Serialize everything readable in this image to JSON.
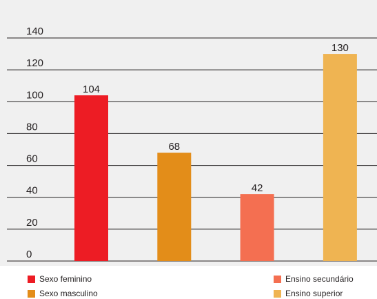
{
  "chart_data": {
    "type": "bar",
    "title": "",
    "xlabel": "",
    "ylabel": "",
    "ylim": [
      0,
      140
    ],
    "yticks": [
      0,
      20,
      40,
      60,
      80,
      100,
      120,
      140
    ],
    "grid": true,
    "legend_position": "bottom",
    "categories": [
      "Sexo feminino",
      "Sexo masculino",
      "Ensino secundário",
      "Ensino superior"
    ],
    "values": [
      104,
      68,
      42,
      130
    ],
    "value_labels": [
      "104",
      "68",
      "42",
      "130"
    ],
    "colors": [
      "#ed1c24",
      "#e38d19",
      "#f46f51",
      "#efb452"
    ],
    "plot_background": "#f0f0f0"
  },
  "legend": {
    "items": [
      {
        "label": "Sexo feminino",
        "color": "#ed1c24"
      },
      {
        "label": "Sexo masculino",
        "color": "#e38d19"
      },
      {
        "label": "Ensino secundário",
        "color": "#f46f51"
      },
      {
        "label": "Ensino superior",
        "color": "#efb452"
      }
    ]
  }
}
